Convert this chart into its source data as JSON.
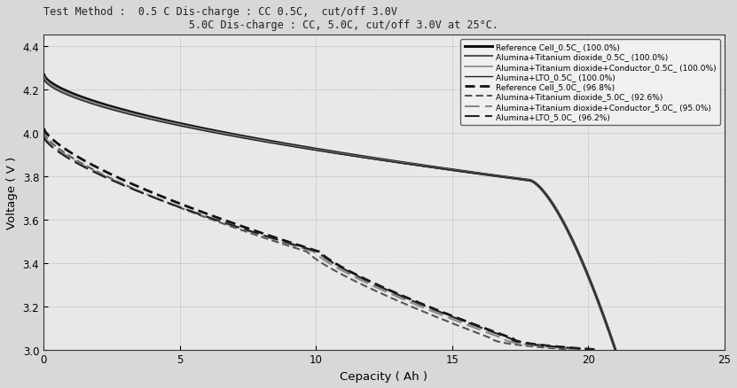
{
  "title_line1": "Test Method :  0.5 C Dis-charge : CC 0.5C,  cut/off 3.0V",
  "title_line2": "                       5.0C Dis-charge : CC, 5.0C, cut/off 3.0V at 25°C.",
  "xlabel": "Cepacity ( Ah )",
  "ylabel": "Voltage ( V )",
  "xlim": [
    0,
    25
  ],
  "ylim": [
    3.0,
    4.45
  ],
  "yticks": [
    3.0,
    3.2,
    3.4,
    3.6,
    3.8,
    4.0,
    4.2,
    4.4
  ],
  "xticks": [
    0,
    5,
    10,
    15,
    20,
    25
  ],
  "curves_05C": [
    {
      "x_end": 21.0,
      "v_start": 4.27,
      "label": "Reference Cell_0.5C_ (100.0%)",
      "lw": 2.2,
      "color": "#111111",
      "ls": "solid"
    },
    {
      "x_end": 21.0,
      "v_start": 4.26,
      "label": "Alumina+Titanium dioxide_0.5C_ (100.0%)",
      "lw": 1.5,
      "color": "#555555",
      "ls": "solid"
    },
    {
      "x_end": 21.0,
      "v_start": 4.26,
      "label": "Alumina+Titanium dioxide+Conductor_0.5C_ (100.0%)",
      "lw": 1.2,
      "color": "#888888",
      "ls": "solid"
    },
    {
      "x_end": 21.0,
      "v_start": 4.25,
      "label": "Alumina+LTO_0.5C_ (100.0%)",
      "lw": 1.0,
      "color": "#222222",
      "ls": "solid"
    }
  ],
  "curves_5C": [
    {
      "x_end": 20.3,
      "v_start": 4.02,
      "label": "Reference Cell_5.0C_ (96.8%)",
      "lw": 2.0,
      "color": "#111111",
      "ls": "densely_dashed"
    },
    {
      "x_end": 19.4,
      "v_start": 4.0,
      "label": "Alumina+Titanium dioxide_5.0C_ (92.6%)",
      "lw": 1.5,
      "color": "#555555",
      "ls": "densely_dashed"
    },
    {
      "x_end": 19.9,
      "v_start": 3.99,
      "label": "Alumina+Titanium dioxide+Conductor_5.0C_ (95.0%)",
      "lw": 1.5,
      "color": "#888888",
      "ls": "long_dashed"
    },
    {
      "x_end": 20.2,
      "v_start": 3.98,
      "label": "Alumina+LTO_5.0C_ (96.2%)",
      "lw": 1.5,
      "color": "#222222",
      "ls": "long_dashed"
    }
  ]
}
